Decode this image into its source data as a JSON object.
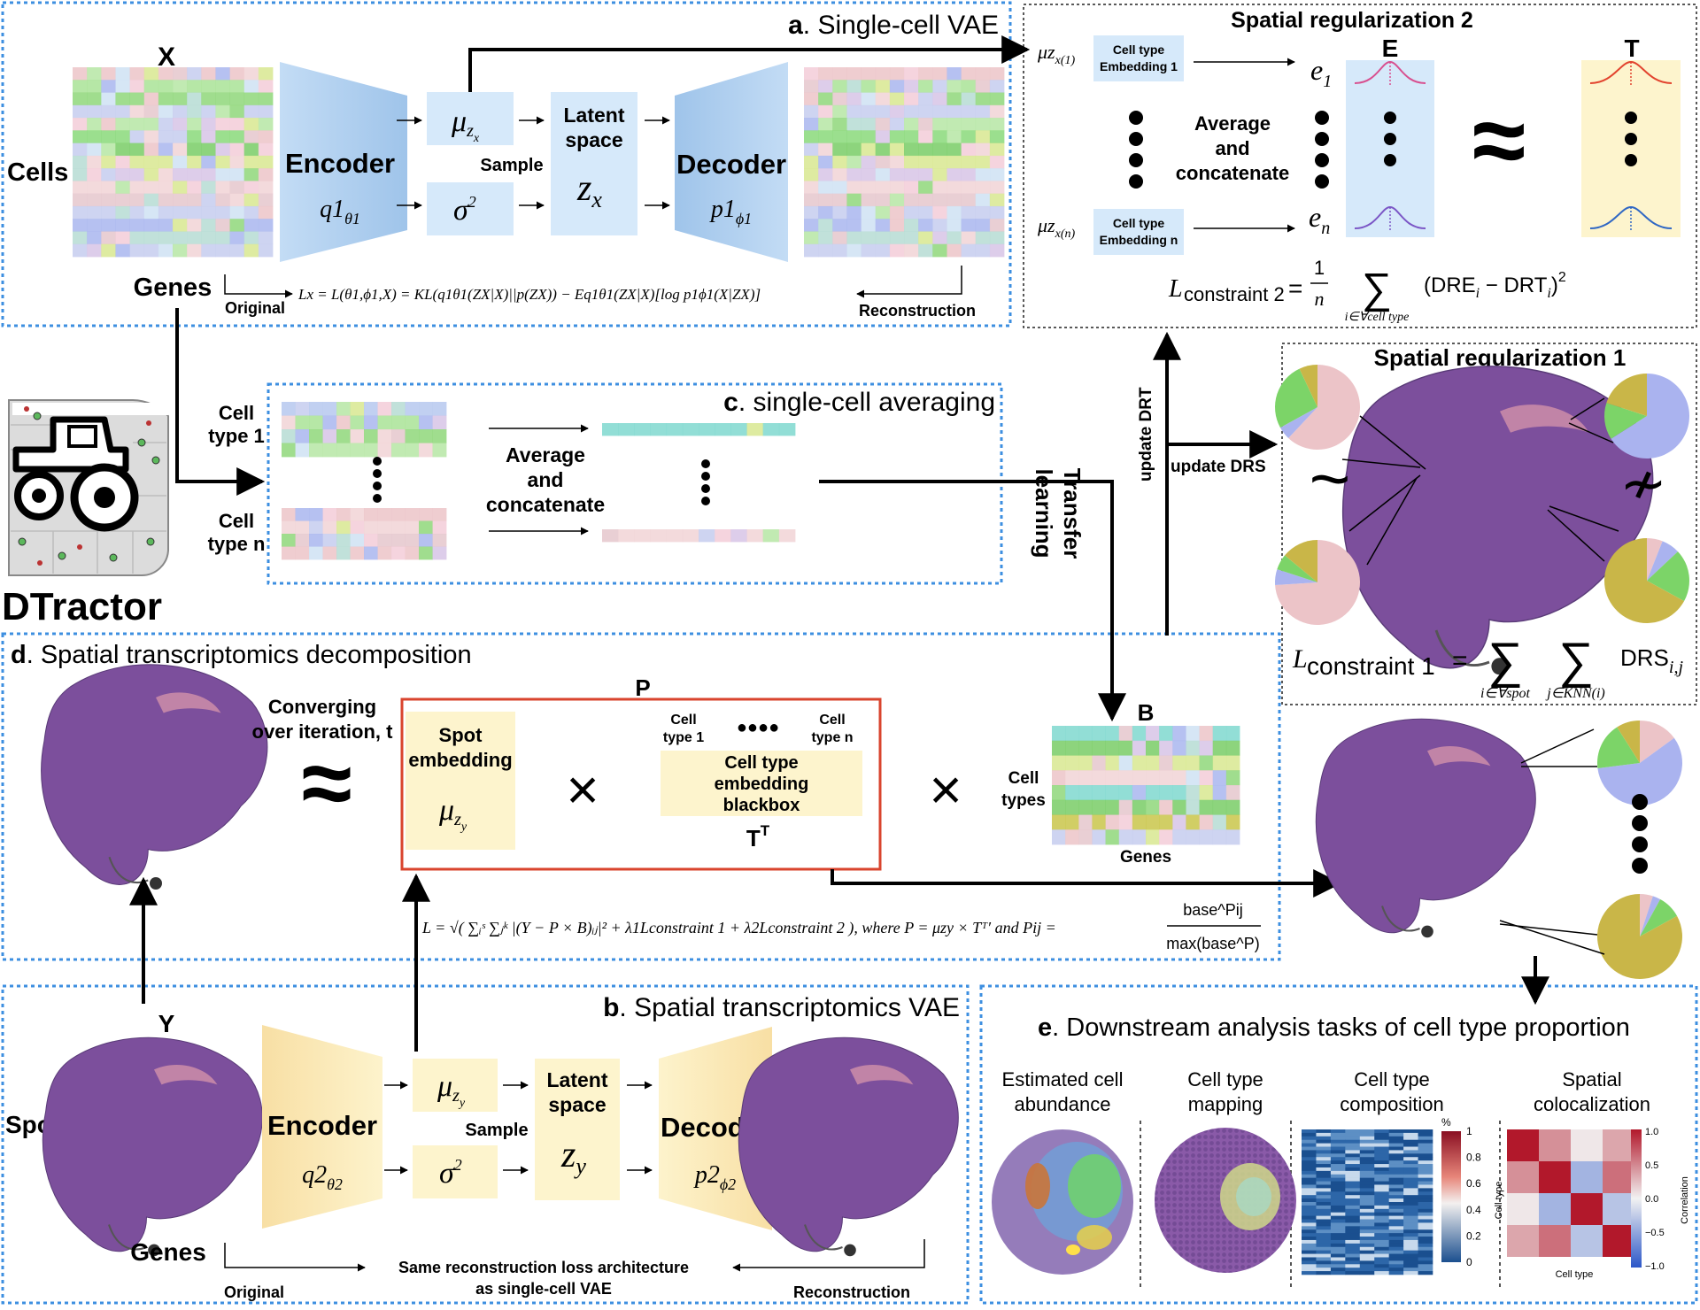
{
  "panels": {
    "a": {
      "letter": "a",
      "title": ". Single-cell VAE"
    },
    "b": {
      "letter": "b",
      "title": ". Spatial transcriptomics  VAE"
    },
    "c": {
      "letter": "c",
      "title": ". single-cell averaging"
    },
    "d": {
      "letter": "d",
      "title": ". Spatial transcriptomics decomposition"
    },
    "e": {
      "letter": "e",
      "title": ". Downstream analysis tasks of cell type proportion"
    },
    "sr1": {
      "title": "Spatial regularization 1"
    },
    "sr2": {
      "title": "Spatial regularization  2"
    }
  },
  "logo": {
    "name": "DTractor"
  },
  "vae_a": {
    "matrix_label": "X",
    "rows_label": "Cells",
    "cols_label": "Genes",
    "encoder": "Encoder",
    "encoder_fn": "q1",
    "encoder_sub": "θ1",
    "mu": "μ",
    "mu_sub": "z",
    "mu_subsub": "x",
    "sigma": "σ",
    "sigma_sup": "2",
    "sample": "Sample",
    "latent_line1": "Latent",
    "latent_line2": "space",
    "latent_var": "z",
    "latent_sub": "x",
    "decoder": "Decoder",
    "decoder_fn": "p1",
    "decoder_sub": "ϕ1",
    "original": "Original",
    "reconstruction": "Reconstruction",
    "loss": "Lx = L(θ1,ϕ1,X) = KL(q1θ1(ZX|X)||p(ZX)) − Eq1θ1(ZX|X)[log p1ϕ1(X|ZX)]"
  },
  "vae_b": {
    "matrix_label": "Y",
    "rows_label": "Spots",
    "cols_label": "Genes",
    "encoder": "Encoder",
    "encoder_fn": "q2",
    "encoder_sub": "θ2",
    "mu": "μ",
    "sigma": "σ",
    "sigma_sup": "2",
    "sample": "Sample",
    "latent_line1": "Latent",
    "latent_line2": "space",
    "latent_var": "z",
    "latent_sub": "y",
    "decoder": "Decoder",
    "decoder_fn": "p2",
    "decoder_sub": "ϕ2",
    "original": "Original",
    "reconstruction": "Reconstruction",
    "note_line1": "Same reconstruction loss architecture",
    "note_line2": "as single-cell VAE"
  },
  "averaging": {
    "type1_line1": "Cell",
    "type1_line2": "type 1",
    "typen_line1": "Cell",
    "typen_line2": "type n",
    "op_line1": "Average",
    "op_line2": "and",
    "op_line3": "concatenate"
  },
  "sr2": {
    "emb1_line1": "Cell type",
    "emb1_line2": "Embedding 1",
    "embn_line1": "Cell type",
    "embn_line2": "Embedding n",
    "mu1": "μz",
    "mu1_idx": "x(1)",
    "mun": "μz",
    "mun_idx": "x(n)",
    "op_line1": "Average",
    "op_line2": "and",
    "op_line3": "concatenate",
    "e1": "e",
    "e1_sub": "1",
    "en": "e",
    "en_sub": "n",
    "E": "E",
    "T": "T",
    "approx": "≈",
    "loss_L": "L",
    "loss_sub": "constraint 2",
    "loss_eq": "=",
    "loss_frac_top": "1",
    "loss_frac_bot": "n",
    "loss_sum": "∑",
    "loss_sum_under": "i∈∀cell type",
    "loss_term": "(DRE",
    "loss_term_i": "i",
    "loss_term_mid": " − DRT",
    "loss_term_i2": "i",
    "loss_term_end": ")",
    "loss_sq": "2"
  },
  "sr1": {
    "similar": "~",
    "not_similar": "≁",
    "loss_L": "L",
    "loss_sub": "constraint 1",
    "loss_eq": "=",
    "sum": "∑",
    "sum1_under": "i∈∀spot",
    "sum2_under": "j∈KNN(i)",
    "term": "DRS",
    "term_sub": "i,j"
  },
  "flows": {
    "update_drt": "update DRT",
    "update_drs": "update DRS",
    "transfer_line1": "Transfer",
    "transfer_line2": "learning"
  },
  "decomp": {
    "converging_line1": "Converging",
    "converging_line2": "over iteration, t",
    "approx": "≈",
    "P": "P",
    "spot_line1": "Spot",
    "spot_line2": "embedding",
    "spot_mu": "μ",
    "spot_sub": "z",
    "spot_subsub": "y",
    "times": "×",
    "ct1_line1": "Cell",
    "ct1_line2": "type 1",
    "ctn_line1": "Cell",
    "ctn_line2": "type n",
    "dots": "●●●●",
    "blackbox_line1": "Cell type",
    "blackbox_line2": "embedding",
    "blackbox_line3": "blackbox",
    "TT": "T",
    "TT_sup": "T",
    "B": "B",
    "celltypes_line1": "Cell",
    "celltypes_line2": "types",
    "genes": "Genes",
    "loss_main": "L = √( ∑ᵢˢ ∑ⱼᵏ |(Y − P × B)ᵢⱼ|² + λ1Lconstraint 1 + λ2Lconstraint 2 ), where P = μzy × Tᵀ′ and Pij =",
    "loss_frac_top": "base^Pij",
    "loss_frac_bot": "max(base^P)"
  },
  "downstream": {
    "t1_line1": "Estimated cell",
    "t1_line2": "abundance",
    "t2_line1": "Cell type",
    "t2_line2": "mapping",
    "t3_line1": "Cell type",
    "t3_line2": "composition",
    "t4_line1": "Spatial",
    "t4_line2": "colocalization",
    "hm1_unit": "%",
    "hm1_ticks": [
      "1",
      "0.8",
      "0.6",
      "0.4",
      "0.2",
      "0"
    ],
    "hm2_ticks": [
      "1.0",
      "0.5",
      "0.0",
      "−0.5",
      "−1.0"
    ],
    "hm2_ylabel": "Cell type",
    "hm2_xlabel": "Cell type",
    "hm2_cbar_label": "Correlation"
  },
  "colors": {
    "panel_border": "#3d8fe0",
    "blue_box": "#d6e9fa",
    "yellow_box": "#fdf4cd",
    "pink": "#ecc4c8",
    "green": "#7cd468",
    "lavender": "#aab3ef",
    "olive": "#c9b648",
    "tissue": "#7a4f9a",
    "red_box": "#d9442e"
  }
}
